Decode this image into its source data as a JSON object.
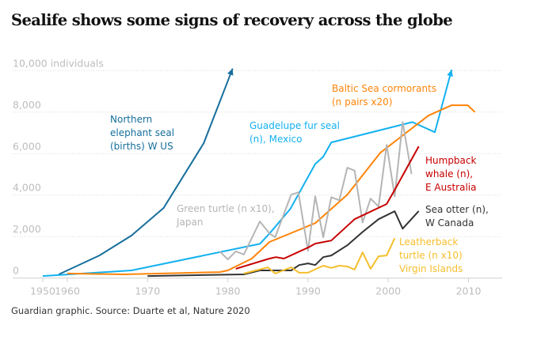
{
  "title": "Sealife shows some signs of recovery across the globe",
  "source": "Guardian graphic. Source: Duarte et al, Nature 2020",
  "chart_data": {
    "type": "line",
    "title": "Sealife shows some signs of recovery across the globe",
    "ylabel": "individuals",
    "ylim": [
      0,
      10000
    ],
    "yticks": [
      0,
      2000,
      4000,
      6000,
      8000,
      10000
    ],
    "ytick_labels": [
      "0",
      "2,000",
      "4,000",
      "6,000",
      "8,000",
      "10,000 individuals"
    ],
    "xticks": [
      1950,
      1960,
      1970,
      1980,
      1990,
      2000,
      2010
    ],
    "grid": true,
    "series": [
      {
        "name": "Northern elephant seal (births) W US",
        "color": "#166e9c",
        "arrow": true,
        "x": [
          1956.5,
          1964,
          1968,
          1972,
          1977,
          1979.7,
          1980.6
        ],
        "y": [
          180,
          1090,
          2050,
          3380,
          6500,
          9200,
          10100
        ]
      },
      {
        "name": "Guadelupe fur seal (n), Mexico",
        "color": "#13b1ef",
        "arrow": true,
        "x": [
          1950,
          1968,
          1984,
          1985.2,
          1987.8,
          1990.9,
          1991.9,
          1992.9,
          2003,
          2005.8,
          2007.9
        ],
        "y": [
          100,
          370,
          1650,
          2150,
          3340,
          5500,
          5850,
          6540,
          7520,
          7030,
          10040
        ]
      },
      {
        "name": "Baltic Sea cormorants (n pairs x20)",
        "color": "#ff8409",
        "arrow": false,
        "x": [
          1960,
          1967,
          1979,
          1980,
          1983,
          1985.2,
          1990.9,
          1994.9,
          1999,
          2005,
          2007.9,
          2009.9,
          2010.8
        ],
        "y": [
          220,
          180,
          290,
          370,
          940,
          1740,
          2650,
          4020,
          6040,
          7830,
          8330,
          8330,
          8000
        ]
      },
      {
        "name": "Green turtle (n x10), Japan",
        "color": "#b5b5b5",
        "arrow": false,
        "x": [
          1979,
          1980,
          1981,
          1982,
          1984,
          1985.2,
          1985.9,
          1987.9,
          1988.8,
          1990,
          1990.9,
          1991.9,
          1992.9,
          1993.9,
          1994.9,
          1995.8,
          1996.8,
          1997.8,
          1998.8,
          1999.8,
          2000.8,
          2001.8,
          2002.9
        ],
        "y": [
          1290,
          900,
          1290,
          1140,
          2730,
          2150,
          1970,
          4020,
          4130,
          1320,
          3940,
          1970,
          3900,
          3750,
          5320,
          5180,
          2680,
          3830,
          3450,
          6420,
          3940,
          7520,
          5010
        ]
      },
      {
        "name": "Humpback whale (n), E Australia",
        "color": "#c70000",
        "arrow": false,
        "x": [
          1981,
          1985.2,
          1986,
          1987,
          1990,
          1990.9,
          1992.9,
          1995.8,
          1999.8,
          2000.8,
          2003.8
        ],
        "y": [
          450,
          940,
          1010,
          940,
          1470,
          1660,
          1810,
          2840,
          3570,
          4250,
          6350
        ]
      },
      {
        "name": "Sea otter (n), W Canada",
        "color": "#333333",
        "arrow": false,
        "x": [
          1970,
          1982,
          1984,
          1987.9,
          1988.9,
          1990,
          1990.9,
          1991.9,
          1992.9,
          1994.9,
          1996.8,
          1998.8,
          2000.8,
          2001.8,
          2003.8
        ],
        "y": [
          100,
          180,
          370,
          370,
          630,
          710,
          630,
          1010,
          1090,
          1580,
          2220,
          2840,
          3220,
          2380,
          3230
        ]
      },
      {
        "name": "Leatherback turtle (n x10) Virgin Islands",
        "color": "#f5be2c",
        "arrow": false,
        "x": [
          1982,
          1985,
          1985.9,
          1987.9,
          1988.9,
          1990,
          1991.9,
          1992.9,
          1993.9,
          1994.9,
          1995.8,
          1996.8,
          1997.8,
          1998.8,
          1999.8,
          2000.8
        ],
        "y": [
          220,
          520,
          220,
          520,
          260,
          260,
          600,
          490,
          600,
          560,
          410,
          1240,
          450,
          1050,
          1090,
          1920
        ]
      }
    ],
    "labels": [
      {
        "lines": [
          "Northern",
          "elephant seal",
          "(births) W US"
        ]
      },
      {
        "lines": [
          "Guadelupe fur seal",
          "(n), Mexico"
        ]
      },
      {
        "lines": [
          "Baltic Sea cormorants",
          "(n pairs x20)"
        ]
      },
      {
        "lines": [
          "Green turtle (n x10),",
          "Japan"
        ]
      },
      {
        "lines": [
          "Humpback",
          "whale (n),",
          "E Australia"
        ]
      },
      {
        "lines": [
          "Sea otter (n),",
          "W Canada"
        ]
      },
      {
        "lines": [
          "Leatherback",
          "turtle (n x10)",
          "Virgin Islands"
        ]
      }
    ]
  }
}
